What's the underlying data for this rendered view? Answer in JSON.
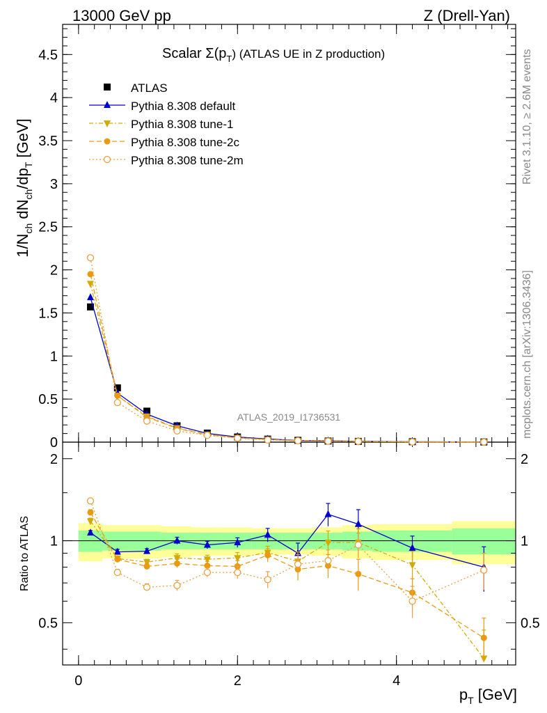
{
  "header": {
    "left": "13000 GeV pp",
    "right": "Z (Drell-Yan)"
  },
  "side_labels": {
    "rivet": "Rivet 3.1.10, ≥ 2.6M events",
    "mcplots": "mcplots.cern.ch [arXiv:1306.3436]"
  },
  "chart_data": {
    "type": "scatter",
    "title": {
      "prefix": "Scalar Σ(p",
      "sub": "T",
      "suffix": ") (ATLAS UE in Z production)"
    },
    "watermark": "ATLAS_2019_I1736531",
    "xlabel": {
      "main": "p",
      "sub": "T",
      "unit": " [GeV]"
    },
    "ylabel": {
      "p1": "1/N",
      "s1": "ch",
      "p2": " dN",
      "s2": "ch",
      "p3": "/dp",
      "s3": "T",
      "p4": " [GeV]"
    },
    "ratio_ylabel": "Ratio to ATLAS",
    "xlim": [
      -0.2,
      5.5
    ],
    "ylim": [
      0,
      4.85
    ],
    "ratio_ylim": [
      0.35,
      2.3
    ],
    "ratio_scale": "log",
    "x_ticks": [
      "0",
      "2",
      "4"
    ],
    "y_ticks": [
      "0",
      "0.5",
      "1",
      "1.5",
      "2",
      "2.5",
      "3",
      "3.5",
      "4",
      "4.5"
    ],
    "ratio_ticks": [
      "0.5",
      "1",
      "2"
    ],
    "legend_position": "top-left",
    "x": [
      0.15,
      0.49,
      0.86,
      1.24,
      1.62,
      2.0,
      2.38,
      2.76,
      3.14,
      3.52,
      4.2,
      5.1
    ],
    "x_edges": [
      0.0,
      0.3,
      0.68,
      1.04,
      1.42,
      1.8,
      2.18,
      2.56,
      2.94,
      3.32,
      3.7,
      4.7,
      5.5
    ],
    "data_band_outer": [
      0.16,
      0.14,
      0.14,
      0.13,
      0.12,
      0.12,
      0.11,
      0.11,
      0.12,
      0.14,
      0.15,
      0.18
    ],
    "data_band_inner": [
      0.09,
      0.08,
      0.08,
      0.07,
      0.07,
      0.07,
      0.07,
      0.07,
      0.07,
      0.08,
      0.09,
      0.11
    ],
    "series": [
      {
        "name": "ATLAS",
        "color": "#000000",
        "marker": "square",
        "values": [
          1.57,
          0.63,
          0.36,
          0.19,
          0.105,
          0.06,
          0.035,
          0.021,
          0.013,
          0.009,
          0.005,
          0.002
        ]
      },
      {
        "name": "Pythia 8.308 default",
        "color": "#0000cc",
        "marker": "triangle-up",
        "dash": "",
        "values": [
          1.68,
          0.57,
          0.325,
          0.19,
          0.101,
          0.059,
          0.037,
          0.019,
          0.016,
          0.0105,
          0.0047,
          0.0016
        ],
        "ratio": [
          1.07,
          0.91,
          0.915,
          1.0,
          0.965,
          0.985,
          1.05,
          0.9,
          1.25,
          1.15,
          0.94,
          0.8
        ],
        "ratio_err": [
          0.02,
          0.02,
          0.02,
          0.03,
          0.03,
          0.04,
          0.06,
          0.08,
          0.12,
          0.15,
          0.1,
          0.15
        ]
      },
      {
        "name": "Pythia 8.308 tune-1",
        "color": "#d4aa00",
        "marker": "triangle-down",
        "dash": "6,3,2,3",
        "values": [
          1.84,
          0.54,
          0.3,
          0.165,
          0.09,
          0.052,
          0.031,
          0.017,
          0.013,
          0.0089,
          0.0041,
          0.0008
        ],
        "ratio": [
          1.18,
          0.86,
          0.835,
          0.865,
          0.855,
          0.865,
          0.905,
          0.84,
          0.985,
          0.985,
          0.815,
          0.37
        ],
        "ratio_err": [
          0.03,
          0.02,
          0.02,
          0.03,
          0.03,
          0.04,
          0.05,
          0.07,
          0.1,
          0.12,
          0.1,
          0.1
        ]
      },
      {
        "name": "Pythia 8.308 tune-2c",
        "color": "#e89b10",
        "marker": "circle",
        "dash": "7,4",
        "values": [
          1.95,
          0.54,
          0.29,
          0.16,
          0.085,
          0.049,
          0.031,
          0.016,
          0.011,
          0.0068,
          0.0033,
          0.0009
        ],
        "ratio": [
          1.27,
          0.855,
          0.805,
          0.825,
          0.81,
          0.805,
          0.885,
          0.785,
          0.81,
          0.755,
          0.645,
          0.44
        ],
        "ratio_err": [
          0.03,
          0.02,
          0.02,
          0.03,
          0.03,
          0.04,
          0.05,
          0.07,
          0.08,
          0.1,
          0.08,
          0.08
        ]
      },
      {
        "name": "Pythia 8.308 tune-2m",
        "color": "#e8a040",
        "marker": "circle-open",
        "dash": "2,3",
        "values": [
          2.14,
          0.46,
          0.245,
          0.13,
          0.08,
          0.046,
          0.025,
          0.017,
          0.011,
          0.0087,
          0.003,
          0.0016
        ],
        "ratio": [
          1.4,
          0.765,
          0.675,
          0.685,
          0.765,
          0.765,
          0.72,
          0.82,
          0.845,
          0.965,
          0.6,
          0.78
        ],
        "ratio_err": [
          0.03,
          0.02,
          0.02,
          0.03,
          0.03,
          0.04,
          0.05,
          0.07,
          0.08,
          0.1,
          0.08,
          0.12
        ]
      }
    ]
  }
}
